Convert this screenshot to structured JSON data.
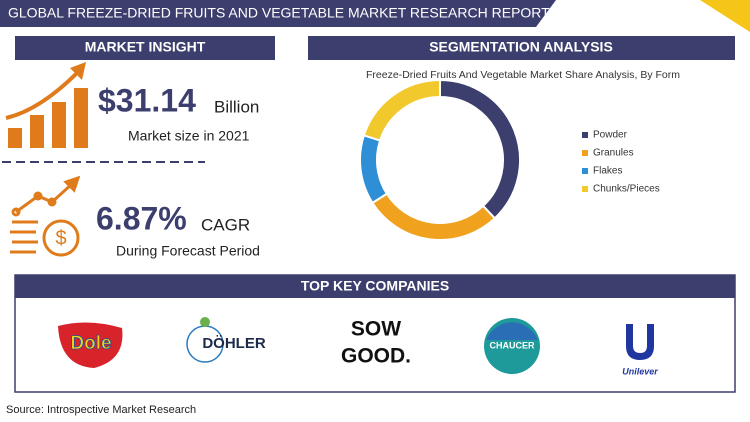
{
  "header": {
    "title": "GLOBAL FREEZE-DRIED FRUITS AND VEGETABLE MARKET RESEARCH REPORT"
  },
  "market_insight": {
    "heading": "MARKET INSIGHT",
    "market_size": "$31.14",
    "market_size_unit": "Billion",
    "market_size_note": "Market size in 2021",
    "cagr": "6.87%",
    "cagr_label": "CAGR",
    "cagr_note": "During Forecast Period"
  },
  "segmentation": {
    "heading": "SEGMENTATION ANALYSIS"
  },
  "chart_data": {
    "type": "donut",
    "title": "Freeze-Dried Fruits And Vegetable Market Share Analysis, By Form",
    "categories": [
      "Powder",
      "Granules",
      "Flakes",
      "Chunks/Pieces"
    ],
    "values": [
      38,
      28,
      14,
      20
    ],
    "colors": [
      "#3c3e6e",
      "#f0a21e",
      "#2e8fd6",
      "#f2c92c"
    ]
  },
  "companies": {
    "heading": "TOP KEY COMPANIES",
    "logos": [
      "Dole",
      "DÖHLER",
      "SOW",
      "GOOD.",
      "CHAUCER",
      "Unilever"
    ]
  },
  "source": "Source: Introspective Market Research"
}
